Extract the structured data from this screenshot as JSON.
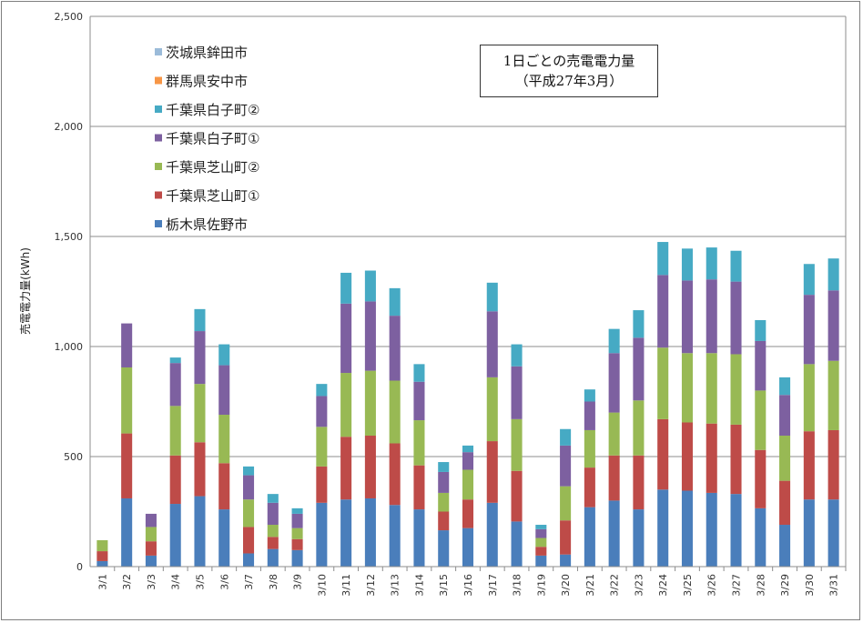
{
  "chart_data": {
    "type": "bar",
    "stacked": true,
    "title": "1日ごとの売電電力量",
    "subtitle": "（平成27年3月）",
    "ylabel": "売電電力量(kWh)",
    "xlabel": "",
    "ylim": [
      0,
      2500
    ],
    "yticks": [
      "0",
      "500",
      "1,000",
      "1,500",
      "2,000",
      "2,500"
    ],
    "ytick_values": [
      0,
      500,
      1000,
      1500,
      2000,
      2500
    ],
    "grid": "horizontal",
    "legend_position": "top-left",
    "categories": [
      "3/1",
      "3/2",
      "3/3",
      "3/4",
      "3/5",
      "3/6",
      "3/7",
      "3/8",
      "3/9",
      "3/10",
      "3/11",
      "3/12",
      "3/13",
      "3/14",
      "3/15",
      "3/16",
      "3/17",
      "3/18",
      "3/19",
      "3/20",
      "3/21",
      "3/22",
      "3/23",
      "3/24",
      "3/25",
      "3/26",
      "3/27",
      "3/28",
      "3/29",
      "3/30",
      "3/31"
    ],
    "series": [
      {
        "name": "栃木県佐野市",
        "color": "#4a7ebb",
        "values": [
          25,
          310,
          50,
          285,
          320,
          260,
          60,
          80,
          75,
          290,
          305,
          310,
          280,
          260,
          165,
          175,
          290,
          205,
          50,
          55,
          270,
          300,
          260,
          350,
          345,
          335,
          330,
          265,
          190,
          305,
          305
        ]
      },
      {
        "name": "千葉県芝山町①",
        "color": "#be4b48",
        "values": [
          45,
          295,
          65,
          220,
          245,
          210,
          120,
          55,
          50,
          165,
          285,
          285,
          280,
          200,
          85,
          130,
          280,
          230,
          40,
          155,
          180,
          205,
          245,
          320,
          310,
          315,
          315,
          265,
          200,
          310,
          315
        ]
      },
      {
        "name": "千葉県芝山町②",
        "color": "#98b954",
        "values": [
          50,
          300,
          65,
          225,
          265,
          220,
          125,
          55,
          50,
          180,
          290,
          295,
          285,
          205,
          85,
          135,
          290,
          235,
          40,
          155,
          170,
          195,
          250,
          325,
          315,
          320,
          320,
          270,
          205,
          305,
          315
        ]
      },
      {
        "name": "千葉県白子町①",
        "color": "#7d60a0",
        "values": [
          0,
          200,
          60,
          195,
          240,
          225,
          110,
          100,
          65,
          140,
          315,
          315,
          295,
          175,
          95,
          80,
          300,
          240,
          40,
          185,
          130,
          270,
          285,
          330,
          330,
          335,
          330,
          225,
          185,
          315,
          320
        ]
      },
      {
        "name": "千葉県白子町②",
        "color": "#46aac4",
        "values": [
          0,
          0,
          0,
          25,
          100,
          95,
          40,
          40,
          25,
          55,
          140,
          140,
          125,
          80,
          45,
          30,
          130,
          100,
          20,
          75,
          55,
          110,
          125,
          150,
          145,
          145,
          140,
          95,
          80,
          140,
          145
        ]
      },
      {
        "name": "群馬県安中市",
        "color": "#f79646",
        "values": [
          0,
          0,
          0,
          0,
          0,
          0,
          0,
          0,
          0,
          0,
          0,
          0,
          0,
          0,
          0,
          0,
          0,
          0,
          0,
          0,
          0,
          0,
          0,
          0,
          0,
          0,
          0,
          0,
          0,
          0,
          0
        ]
      },
      {
        "name": "茨城県鉾田市",
        "color": "#9bbbd9",
        "values": [
          0,
          0,
          0,
          0,
          0,
          0,
          0,
          0,
          0,
          0,
          0,
          0,
          0,
          0,
          0,
          0,
          0,
          0,
          0,
          0,
          0,
          0,
          0,
          0,
          0,
          0,
          0,
          0,
          0,
          0,
          0
        ]
      }
    ]
  }
}
